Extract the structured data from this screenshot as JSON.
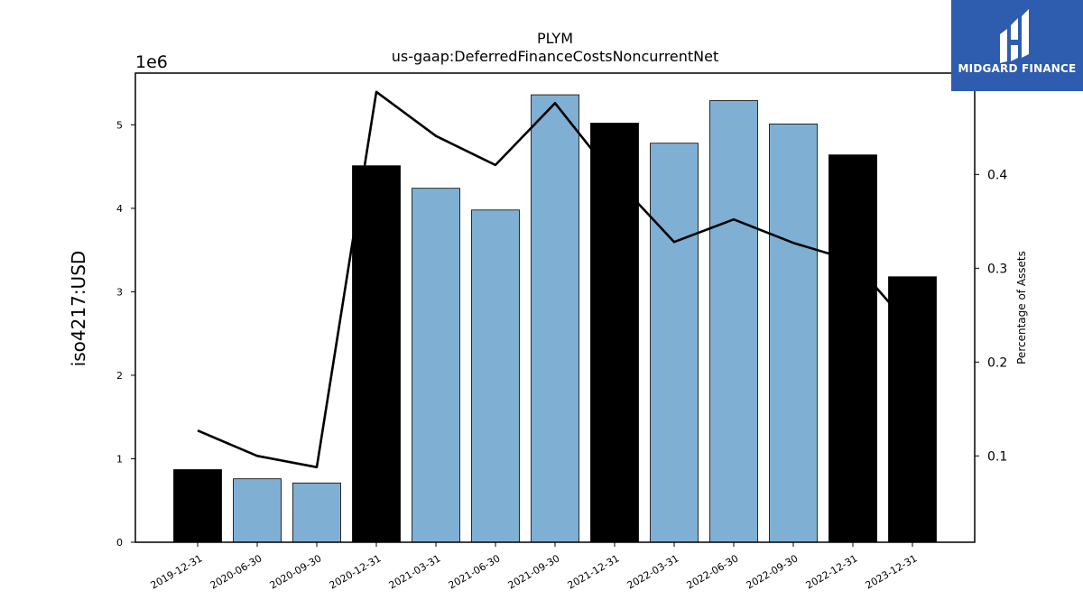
{
  "logo": {
    "text": "MIDGARD FINANCE"
  },
  "chart_data": {
    "type": "bar",
    "title": "PLYM",
    "subtitle": "us-gaap:DeferredFinanceCostsNoncurrentNet",
    "ylabel": "iso4217:USD",
    "y2label": "Percentage of Assets",
    "offset_text": "1e6",
    "categories": [
      "2019-12-31",
      "2020-06-30",
      "2020-09-30",
      "2020-12-31",
      "2021-03-31",
      "2021-06-30",
      "2021-09-30",
      "2021-12-31",
      "2022-03-31",
      "2022-06-30",
      "2022-09-30",
      "2022-12-31",
      "2023-12-31"
    ],
    "values": [
      870000,
      760000,
      710000,
      4510000,
      4240000,
      3980000,
      5360000,
      5020000,
      4780000,
      5290000,
      5010000,
      4640000,
      3180000
    ],
    "bar_colors": [
      "#000000",
      "#7fb0d4",
      "#7fb0d4",
      "#000000",
      "#7fb0d4",
      "#7fb0d4",
      "#7fb0d4",
      "#000000",
      "#7fb0d4",
      "#7fb0d4",
      "#7fb0d4",
      "#000000",
      "#000000"
    ],
    "line_values": [
      0.127,
      0.1,
      0.088,
      0.488,
      0.441,
      0.41,
      0.476,
      0.396,
      0.328,
      0.352,
      0.327,
      0.308,
      0.235
    ],
    "ylim": [
      0,
      5.62
    ],
    "y_ticks": [
      0,
      1,
      2,
      3,
      4,
      5
    ],
    "y2lim": [
      0.008,
      0.508
    ],
    "y2_ticks": [
      0.1,
      0.2,
      0.3,
      0.4
    ],
    "grid": false
  }
}
